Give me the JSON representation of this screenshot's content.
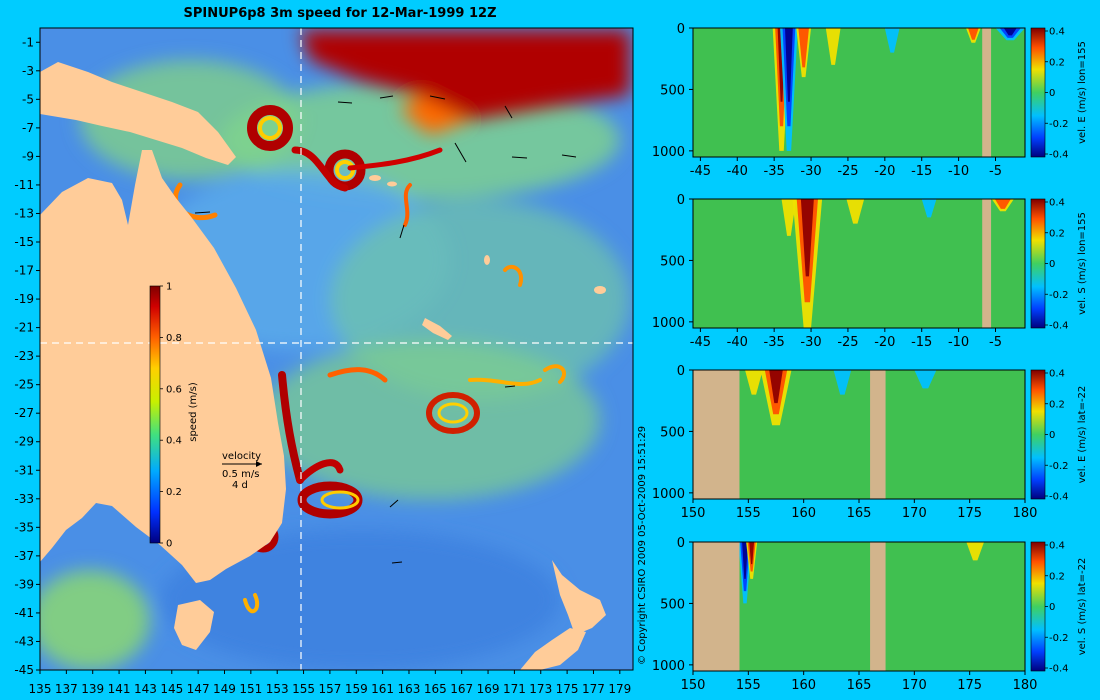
{
  "colors": {
    "background": "#00ccff",
    "land": "#ffcc99",
    "section_land": "#d2b48c",
    "ocean_low": "#3a7be0",
    "ocean_mid": "#7fd08a",
    "jet_high": "#a60000"
  },
  "chart_data": [
    {
      "type": "heatmap",
      "title": "SPINUP6p8 3m speed for 12-Mar-1999 12Z",
      "xlabel": "",
      "ylabel": "",
      "x_ticks": [
        "135",
        "137",
        "139",
        "141",
        "143",
        "145",
        "147",
        "149",
        "151",
        "153",
        "155",
        "157",
        "159",
        "161",
        "163",
        "165",
        "167",
        "169",
        "171",
        "173",
        "175",
        "177",
        "179"
      ],
      "y_ticks": [
        "-1",
        "-3",
        "-5",
        "-7",
        "-9",
        "-11",
        "-13",
        "-15",
        "-17",
        "-19",
        "-21",
        "-23",
        "-25",
        "-27",
        "-29",
        "-31",
        "-33",
        "-35",
        "-37",
        "-39",
        "-41",
        "-43",
        "-45"
      ],
      "xlim": [
        135,
        180
      ],
      "ylim": [
        -45,
        0
      ],
      "section_lines": {
        "lon": 155,
        "lat": -22
      },
      "colorbar": {
        "label": "speed (m/s)",
        "ticks": [
          "0",
          "0.2",
          "0.4",
          "0.6",
          "0.8",
          "1"
        ],
        "range": [
          0,
          1
        ]
      },
      "velocity_key": {
        "title": "velocity",
        "speed": "0.5 m/s",
        "duration": "4 d"
      },
      "copyright": "© Copyright CSIRO 2009   05-Oct-2009 15:51:29"
    },
    {
      "type": "heatmap",
      "x_ticks": [
        "-45",
        "-40",
        "-35",
        "-30",
        "-25",
        "-20",
        "-15",
        "-10",
        "-5"
      ],
      "y_ticks": [
        "0",
        "500",
        "1000"
      ],
      "xlim": [
        -46,
        -1
      ],
      "ylim": [
        0,
        1050
      ],
      "colorbar": {
        "label": "vel. E (m/s) lon=155",
        "ticks": [
          "0.4",
          "0.2",
          "0",
          "-0.2",
          "-0.4"
        ],
        "range": [
          -0.4,
          0.4
        ]
      },
      "features": [
        {
          "x": -34,
          "kind": "strong",
          "sign": 1,
          "depth": 1000,
          "width": 1.2
        },
        {
          "x": -33,
          "kind": "strong",
          "sign": -1,
          "depth": 1000,
          "width": 1.2
        },
        {
          "x": -31,
          "kind": "moderate",
          "sign": 1,
          "depth": 400,
          "width": 1.0
        },
        {
          "x": -27,
          "kind": "weak",
          "sign": 1,
          "depth": 300,
          "width": 1.0
        },
        {
          "x": -19,
          "kind": "weak",
          "sign": -1,
          "depth": 200,
          "width": 1.0
        },
        {
          "x": -8,
          "kind": "moderate",
          "sign": 1,
          "depth": 120,
          "width": 1.0
        },
        {
          "x": -3,
          "kind": "strong",
          "sign": -1,
          "depth": 100,
          "width": 2.0
        }
      ],
      "land_spans": [
        [
          -6.8,
          -5.6
        ]
      ]
    },
    {
      "type": "heatmap",
      "x_ticks": [
        "-45",
        "-40",
        "-35",
        "-30",
        "-25",
        "-20",
        "-15",
        "-10",
        "-5"
      ],
      "y_ticks": [
        "0",
        "500",
        "1000"
      ],
      "xlim": [
        -46,
        -1
      ],
      "ylim": [
        0,
        1050
      ],
      "colorbar": {
        "label": "vel. S (m/s) lon=155",
        "ticks": [
          "0.4",
          "0.2",
          "0",
          "-0.2",
          "-0.4"
        ],
        "range": [
          -0.4,
          0.4
        ]
      },
      "features": [
        {
          "x": -30.5,
          "kind": "strong",
          "sign": 1,
          "depth": 1050,
          "width": 2.0
        },
        {
          "x": -33,
          "kind": "weak",
          "sign": 1,
          "depth": 300,
          "width": 1.0
        },
        {
          "x": -24,
          "kind": "weak",
          "sign": 1,
          "depth": 200,
          "width": 1.2
        },
        {
          "x": -14,
          "kind": "weak",
          "sign": -1,
          "depth": 150,
          "width": 1.0
        },
        {
          "x": -4,
          "kind": "moderate",
          "sign": 1,
          "depth": 100,
          "width": 1.5
        }
      ],
      "land_spans": [
        [
          -6.8,
          -5.6
        ]
      ]
    },
    {
      "type": "heatmap",
      "x_ticks": [
        "150",
        "155",
        "160",
        "165",
        "170",
        "175",
        "180"
      ],
      "y_ticks": [
        "0",
        "500",
        "1000"
      ],
      "xlim": [
        150,
        180
      ],
      "ylim": [
        0,
        1050
      ],
      "colorbar": {
        "label": "vel. E (m/s) lat=-22",
        "ticks": [
          "0.4",
          "0.2",
          "0",
          "-0.2",
          "-0.4"
        ],
        "range": [
          -0.4,
          0.4
        ]
      },
      "features": [
        {
          "x": 157.5,
          "kind": "strong",
          "sign": 1,
          "depth": 450,
          "width": 1.4
        },
        {
          "x": 155.5,
          "kind": "weak",
          "sign": 1,
          "depth": 200,
          "width": 0.8
        },
        {
          "x": 163.5,
          "kind": "weak",
          "sign": -1,
          "depth": 200,
          "width": 0.8
        },
        {
          "x": 171,
          "kind": "weak",
          "sign": -1,
          "depth": 150,
          "width": 1.0
        }
      ],
      "land_spans": [
        [
          150,
          154.2
        ],
        [
          166,
          167.4
        ]
      ]
    },
    {
      "type": "heatmap",
      "x_ticks": [
        "150",
        "155",
        "160",
        "165",
        "170",
        "175",
        "180"
      ],
      "y_ticks": [
        "0",
        "500",
        "1000"
      ],
      "xlim": [
        150,
        180
      ],
      "ylim": [
        0,
        1050
      ],
      "colorbar": {
        "label": "vel. S (m/s) lat=-22",
        "ticks": [
          "0.4",
          "0.2",
          "0",
          "-0.2",
          "-0.4"
        ],
        "range": [
          -0.4,
          0.4
        ]
      },
      "features": [
        {
          "x": 154.7,
          "kind": "strong",
          "sign": -1,
          "depth": 500,
          "width": 0.6
        },
        {
          "x": 155.3,
          "kind": "strong",
          "sign": 1,
          "depth": 300,
          "width": 0.5
        },
        {
          "x": 175.5,
          "kind": "weak",
          "sign": 1,
          "depth": 150,
          "width": 0.8
        }
      ],
      "land_spans": [
        [
          150,
          154.2
        ],
        [
          166,
          167.4
        ]
      ]
    }
  ]
}
